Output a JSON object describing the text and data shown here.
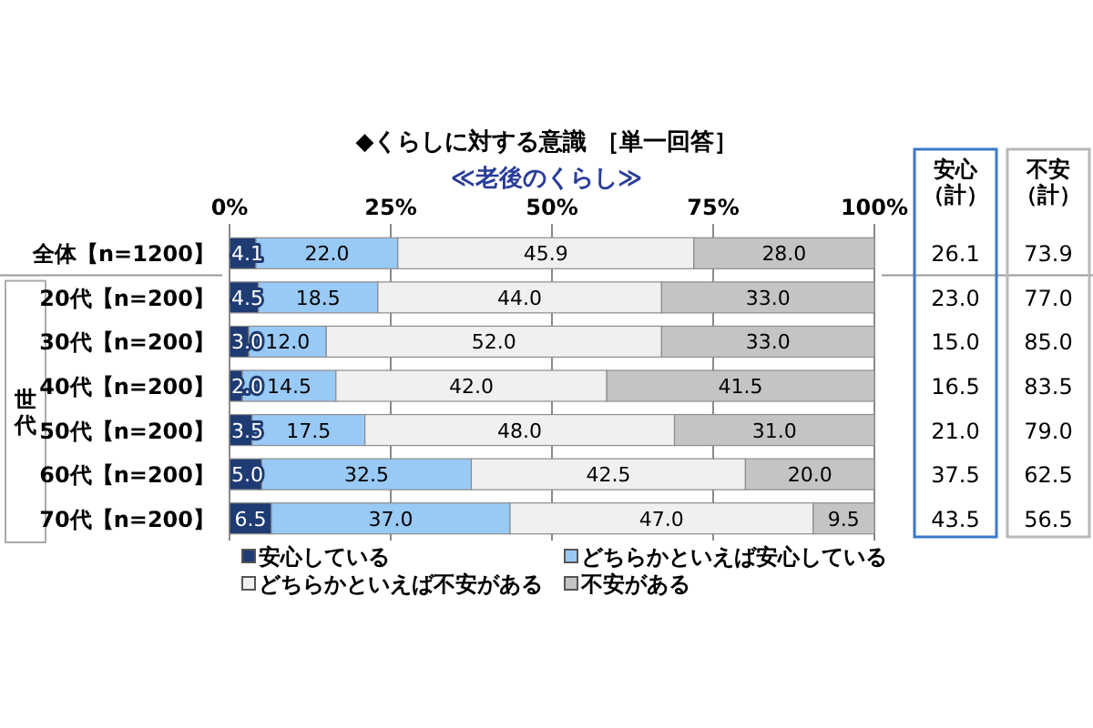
{
  "chart_data": {
    "type": "bar",
    "orientation": "horizontal",
    "stacked": true,
    "title": "◆くらしに対する意識 ［単一回答］",
    "subtitle": "≪老後のくらし≫",
    "categories": [
      "全体【n=1200】",
      "20代【n=200】",
      "30代【n=200】",
      "40代【n=200】",
      "50代【n=200】",
      "60代【n=200】",
      "70代【n=200】"
    ],
    "series": [
      {
        "name": "安心している",
        "color": "#1f3b73",
        "values": [
          4.1,
          4.5,
          3.0,
          2.0,
          3.5,
          5.0,
          6.5
        ],
        "value_labels": [
          "4.1",
          "4.5",
          "3.0",
          "2.0",
          "3.5",
          "5.0",
          "6.5"
        ]
      },
      {
        "name": "どちらかといえば安心している",
        "color": "#99c9f5",
        "values": [
          22.0,
          18.5,
          12.0,
          14.5,
          17.5,
          32.5,
          37.0
        ],
        "value_labels": [
          "22.0",
          "18.5",
          "12.0",
          "14.5",
          "17.5",
          "32.5",
          "37.0"
        ]
      },
      {
        "name": "どちらかといえば不安がある",
        "color": "#f0f0f0",
        "values": [
          45.9,
          44.0,
          52.0,
          42.0,
          48.0,
          42.5,
          47.0
        ],
        "value_labels": [
          "45.9",
          "44.0",
          "52.0",
          "42.0",
          "48.0",
          "42.5",
          "47.0"
        ]
      },
      {
        "name": "不安がある",
        "color": "#c4c4c4",
        "values": [
          28.0,
          33.0,
          33.0,
          41.5,
          31.0,
          20.0,
          9.5
        ],
        "value_labels": [
          "28.0",
          "33.0",
          "33.0",
          "41.5",
          "31.0",
          "20.0",
          "9.5"
        ]
      }
    ],
    "xlim": [
      0,
      100
    ],
    "xticks": [
      {
        "value": 0,
        "label": "0%"
      },
      {
        "value": 25,
        "label": "25%"
      },
      {
        "value": 50,
        "label": "50%"
      },
      {
        "value": 75,
        "label": "75%"
      },
      {
        "value": 100,
        "label": "100%"
      }
    ],
    "grid": "x",
    "legend": "bottom",
    "annotations": [
      "世代",
      "安心（計）",
      "26.1",
      "23.0",
      "15.0",
      "16.5",
      "21.0",
      "37.5",
      "43.5",
      "不安（計）",
      "73.9",
      "77.0",
      "85.0",
      "83.5",
      "79.0",
      "62.5",
      "56.5"
    ]
  }
}
